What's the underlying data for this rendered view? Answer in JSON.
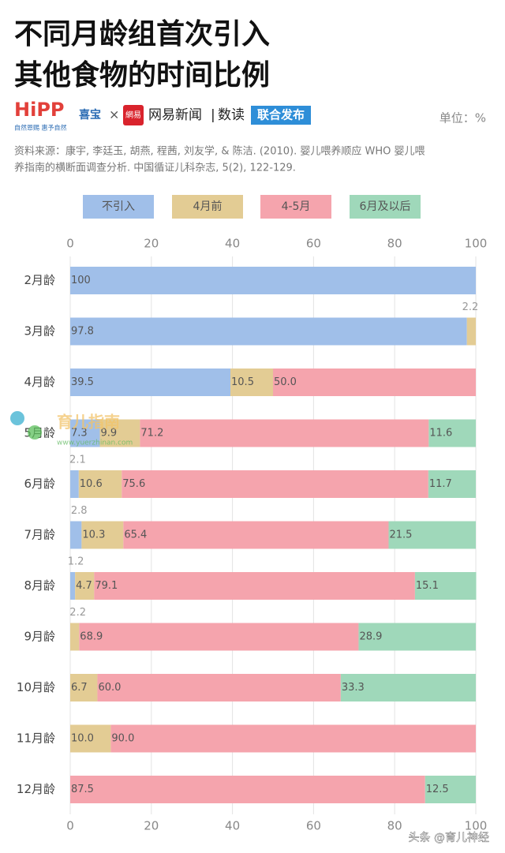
{
  "header": {
    "title_lines": [
      "不同月龄组首次引入",
      "其他食物的时间比例"
    ],
    "logo": {
      "hipp": "HiPP",
      "hipp_cn": "喜宝",
      "hipp_slogan": "自然恩赐   惠予自然",
      "times": "×",
      "netease_icon": "網易",
      "netease": "网易新闻",
      "sep": "|",
      "shudu": "数读",
      "joint": "联合发布"
    },
    "unit": "单位：%",
    "source_lines": [
      "资料来源：康宇, 李廷玉, 胡燕, 程茜, 刘友学, & 陈洁. (2010). 婴儿喂养顺应 WHO 婴儿喂",
      "养指南的横断面调查分析. 中国循证儿科杂志, 5(2), 122-129."
    ]
  },
  "watermark": {
    "name": "育儿指南",
    "url": "www.yuerzhinan.com"
  },
  "footer": "头条 @育儿神经",
  "chart_data": {
    "type": "stacked-bar-horizontal",
    "categories": [
      "2月龄",
      "3月龄",
      "4月龄",
      "5月龄",
      "6月龄",
      "7月龄",
      "8月龄",
      "9月龄",
      "10月龄",
      "11月龄",
      "12月龄"
    ],
    "series": [
      {
        "name": "不引入",
        "color": "#a0bfe9",
        "values": [
          100,
          97.8,
          39.5,
          7.3,
          2.1,
          2.8,
          1.2,
          null,
          null,
          null,
          null
        ],
        "value_labels": [
          "100",
          "97.8",
          "39.5",
          "7.3",
          "2.1",
          "2.8",
          "1.2",
          null,
          null,
          null,
          null
        ]
      },
      {
        "name": "4月前",
        "color": "#e3cc94",
        "values": [
          null,
          2.2,
          10.5,
          9.9,
          10.6,
          10.3,
          4.7,
          2.2,
          6.7,
          10.0,
          null
        ],
        "value_labels": [
          null,
          "2.2",
          "10.5",
          "9.9",
          "10.6",
          "10.3",
          "4.7",
          "2.2",
          "6.7",
          "10.0",
          null
        ]
      },
      {
        "name": "4-5月",
        "color": "#f5a4ad",
        "values": [
          null,
          null,
          50.0,
          71.2,
          75.6,
          65.4,
          79.1,
          68.9,
          60.0,
          90.0,
          87.5
        ],
        "value_labels": [
          null,
          null,
          "50.0",
          "71.2",
          "75.6",
          "65.4",
          "79.1",
          "68.9",
          "60.0",
          "90.0",
          "87.5"
        ]
      },
      {
        "name": "6月及以后",
        "color": "#9fd8ba",
        "values": [
          null,
          null,
          null,
          11.6,
          11.7,
          21.5,
          15.1,
          28.9,
          33.3,
          null,
          12.5
        ],
        "value_labels": [
          null,
          null,
          null,
          "11.6",
          "11.7",
          "21.5",
          "15.1",
          "28.9",
          "33.3",
          null,
          "12.5"
        ]
      }
    ],
    "xlim": [
      0,
      100
    ],
    "xticks": [
      0,
      20,
      40,
      60,
      80,
      100
    ],
    "grid": true
  }
}
